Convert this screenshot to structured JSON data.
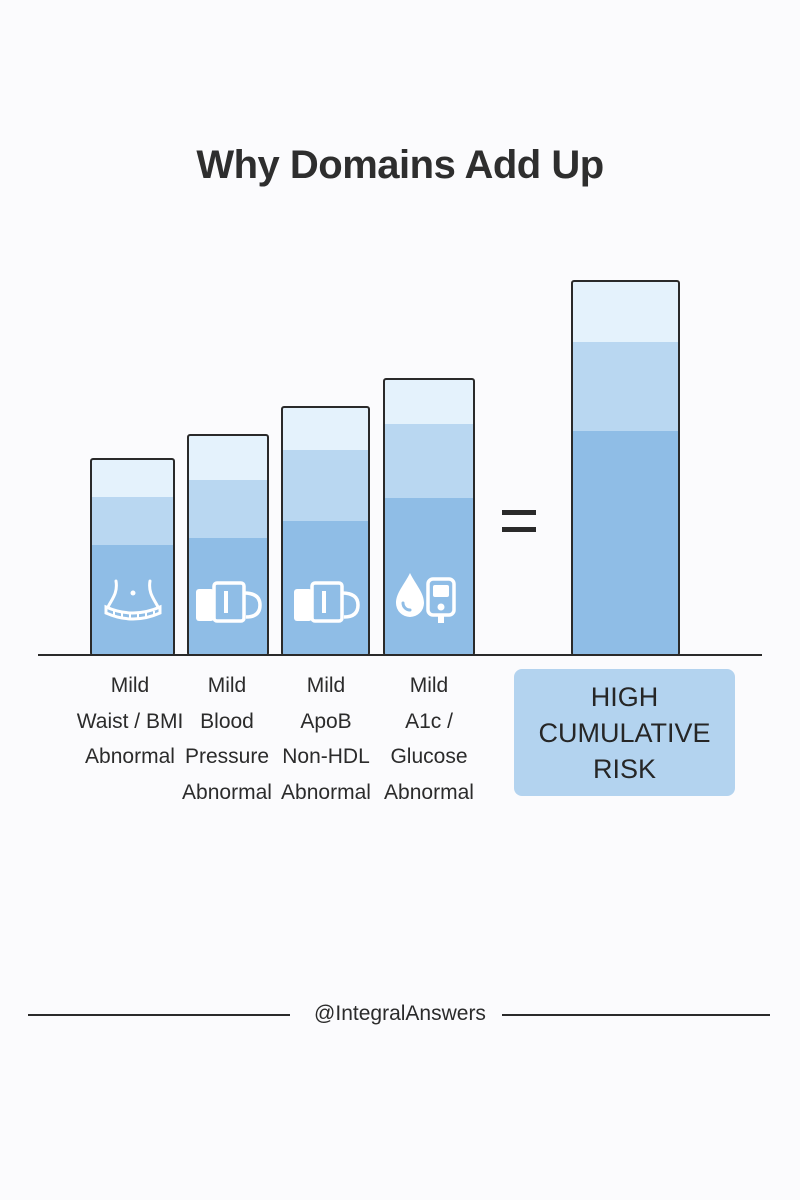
{
  "title": "Why Domains Add Up",
  "operator": "=",
  "domains": [
    {
      "label_lines": [
        "Mild",
        "Waist / BMI",
        "Abnormal"
      ],
      "icon": "waist-tape-icon",
      "level": 0.4
    },
    {
      "label_lines": [
        "Mild",
        "Blood",
        "Pressure",
        "Abnormal"
      ],
      "icon": "blood-pressure-cuff-icon",
      "level": 0.5
    },
    {
      "label_lines": [
        "Mild",
        "ApoB",
        "Non-HDL",
        "Abnormal"
      ],
      "icon": "blood-pressure-cuff-icon",
      "level": 0.6
    },
    {
      "label_lines": [
        "Mild",
        "A1c /",
        "Glucose",
        "Abnormal"
      ],
      "icon": "glucose-meter-icon",
      "level": 0.7
    }
  ],
  "result": {
    "label_lines": [
      "HIGH",
      "CUMULATIVE",
      "RISK"
    ],
    "level": 1.0
  },
  "footer": {
    "handle": "@IntegralAnswers"
  },
  "colors": {
    "light": "#e4f2fc",
    "mid": "#b9d7f1",
    "dark": "#8fbde6",
    "result_box": "#b3d3ef",
    "outline": "#2a2a2a"
  }
}
